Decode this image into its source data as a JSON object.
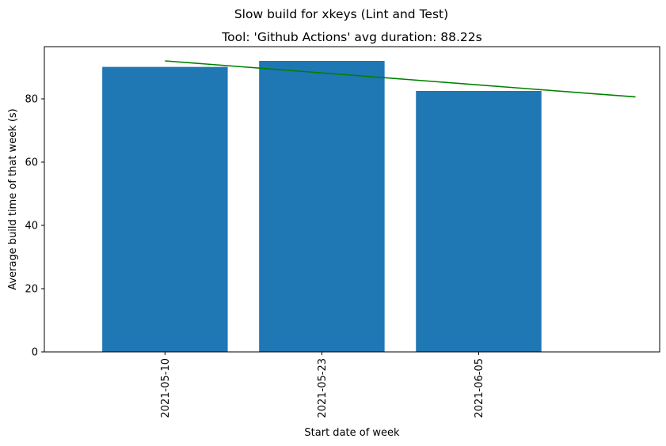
{
  "chart_data": {
    "type": "bar",
    "suptitle": "Slow build for xkeys (Lint and Test)",
    "title": "Tool: 'Github Actions' avg duration: 88.22s",
    "xlabel": "Start date of week",
    "ylabel": "Average build time of that week (s)",
    "categories": [
      "2021-05-10",
      "2021-05-23",
      "2021-06-05"
    ],
    "series": [
      {
        "values": [
          90.1,
          92.0,
          82.5
        ],
        "color": "#1f77b4"
      }
    ],
    "trendline": {
      "color": "#008000",
      "start": {
        "x": "2021-05-10",
        "y": 92.0
      },
      "end": {
        "x": "2021-06-18",
        "y": 80.6
      }
    },
    "x_date_range": [
      "2021-04-30",
      "2021-06-20"
    ],
    "ylim": [
      0,
      96.5
    ],
    "yticks": [
      0,
      20,
      40,
      60,
      80
    ],
    "grid": false,
    "legend": "none"
  }
}
